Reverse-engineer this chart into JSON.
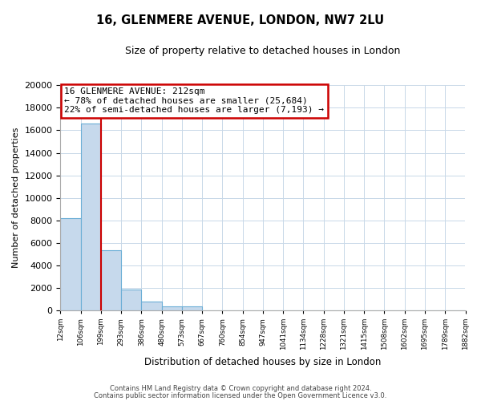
{
  "title": "16, GLENMERE AVENUE, LONDON, NW7 2LU",
  "subtitle": "Size of property relative to detached houses in London",
  "xlabel": "Distribution of detached houses by size in London",
  "ylabel": "Number of detached properties",
  "bar_values": [
    8200,
    16600,
    5300,
    1850,
    800,
    320,
    320,
    0,
    0,
    0,
    0,
    0,
    0,
    0,
    0,
    0,
    0,
    0,
    0,
    0
  ],
  "categories": [
    "12sqm",
    "106sqm",
    "199sqm",
    "293sqm",
    "386sqm",
    "480sqm",
    "573sqm",
    "667sqm",
    "760sqm",
    "854sqm",
    "947sqm",
    "1041sqm",
    "1134sqm",
    "1228sqm",
    "1321sqm",
    "1415sqm",
    "1508sqm",
    "1602sqm",
    "1695sqm",
    "1789sqm",
    "1882sqm"
  ],
  "bar_color": "#c6d9ec",
  "bar_edge_color": "#6baed6",
  "vline_color": "#cc0000",
  "annotation_title": "16 GLENMERE AVENUE: 212sqm",
  "annotation_line1": "← 78% of detached houses are smaller (25,684)",
  "annotation_line2": "22% of semi-detached houses are larger (7,193) →",
  "annotation_box_color": "#cc0000",
  "ylim": [
    0,
    20000
  ],
  "yticks": [
    0,
    2000,
    4000,
    6000,
    8000,
    10000,
    12000,
    14000,
    16000,
    18000,
    20000
  ],
  "footer_line1": "Contains HM Land Registry data © Crown copyright and database right 2024.",
  "footer_line2": "Contains public sector information licensed under the Open Government Licence v3.0.",
  "background_color": "#ffffff",
  "grid_color": "#c8d8e8"
}
